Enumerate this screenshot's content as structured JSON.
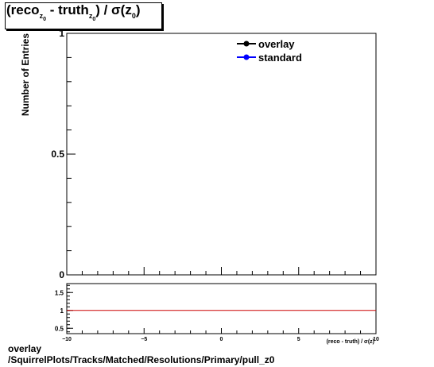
{
  "chart_data": [
    {
      "type": "line",
      "title": "(reco_{z_0} - truth_{z_0}) / σ(z_0)",
      "ylabel": "Number of Entries",
      "xlim": [
        -10,
        10
      ],
      "ylim": [
        0,
        1
      ],
      "y_ticks": [
        {
          "value": 0,
          "label": "0"
        },
        {
          "value": 0.5,
          "label": "0.5"
        },
        {
          "value": 1,
          "label": "1"
        }
      ],
      "legend": {
        "placement": "top-right",
        "entries": [
          {
            "label": "overlay",
            "color": "#000000"
          },
          {
            "label": "standard",
            "color": "#0000ff"
          }
        ]
      },
      "series": [
        {
          "name": "overlay",
          "color": "#000000",
          "values": []
        },
        {
          "name": "standard",
          "color": "#0000ff",
          "values": []
        }
      ],
      "grid": false
    },
    {
      "type": "line",
      "xlabel": "(reco - truth) / σ(z)",
      "xlim": [
        -10,
        10
      ],
      "ylim": [
        0.35,
        1.75
      ],
      "x_ticks": [
        {
          "value": -10,
          "label": "−10"
        },
        {
          "value": -5,
          "label": "−5"
        },
        {
          "value": 0,
          "label": "0"
        },
        {
          "value": 5,
          "label": "5"
        },
        {
          "value": 10,
          "label": "10"
        }
      ],
      "y_ticks": [
        {
          "value": 0.5,
          "label": "0.5"
        },
        {
          "value": 1,
          "label": "1"
        },
        {
          "value": 1.5,
          "label": "1.5"
        }
      ],
      "reference_line": {
        "y": 1,
        "color": "#cc0000"
      },
      "grid": false
    }
  ],
  "title": {
    "reco": "(reco",
    "sub1": "z",
    "sub1b": "0",
    "truth": " - truth",
    "sub2": "z",
    "sub2b": "0",
    "sigma": ") /  σ(z",
    "sub3": "0",
    "close": ")"
  },
  "footer": {
    "line1": "overlay",
    "line2": "/SquirrelPlots/Tracks/Matched/Resolutions/Primary/pull_z0"
  }
}
